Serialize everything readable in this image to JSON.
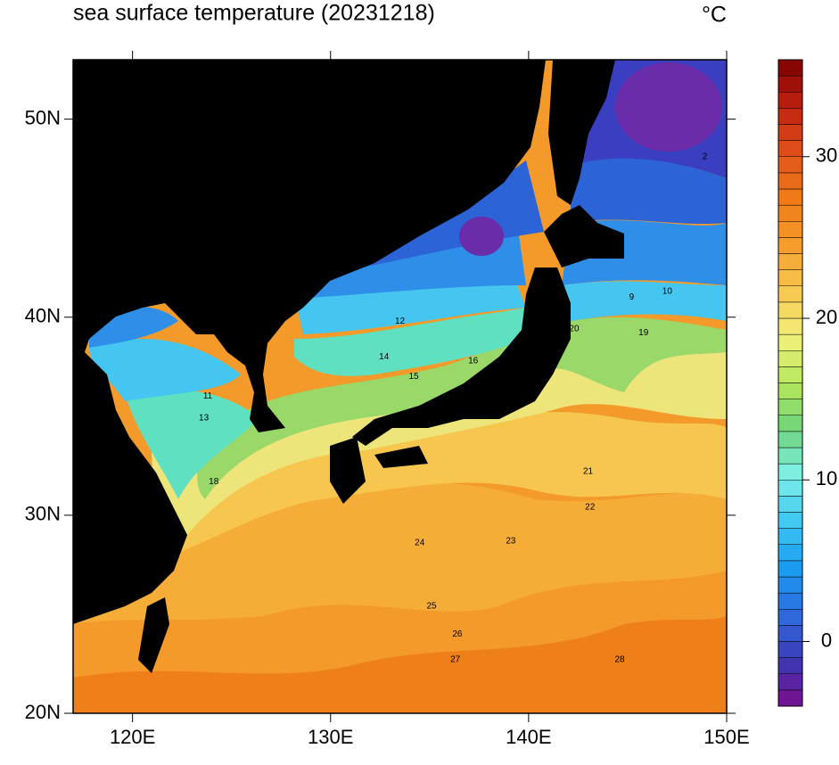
{
  "title": "sea surface temperature (20231218)",
  "unit": "°C",
  "map": {
    "xlim": [
      117,
      150
    ],
    "ylim": [
      20,
      53
    ],
    "xticks": [
      {
        "value": 120,
        "label": "120E"
      },
      {
        "value": 130,
        "label": "130E"
      },
      {
        "value": 140,
        "label": "140E"
      },
      {
        "value": 150,
        "label": "150E"
      }
    ],
    "yticks": [
      {
        "value": 20,
        "label": "20N"
      },
      {
        "value": 30,
        "label": "30N"
      },
      {
        "value": 40,
        "label": "40N"
      },
      {
        "value": 50,
        "label": "50N"
      }
    ],
    "contour_labels": [
      {
        "lon": 134.5,
        "lat": 28.6,
        "value": 24
      },
      {
        "lon": 135.1,
        "lat": 25.4,
        "value": 25
      },
      {
        "lon": 136.4,
        "lat": 24.0,
        "value": 26
      },
      {
        "lon": 136.3,
        "lat": 22.7,
        "value": 27
      },
      {
        "lon": 144.6,
        "lat": 22.7,
        "value": 28
      },
      {
        "lon": 143.1,
        "lat": 30.4,
        "value": 22
      },
      {
        "lon": 143.0,
        "lat": 32.2,
        "value": 21
      },
      {
        "lon": 139.1,
        "lat": 28.7,
        "value": 23
      },
      {
        "lon": 124.1,
        "lat": 31.7,
        "value": 18
      },
      {
        "lon": 123.6,
        "lat": 34.9,
        "value": 13
      },
      {
        "lon": 123.8,
        "lat": 36.0,
        "value": 11
      },
      {
        "lon": 134.2,
        "lat": 37.0,
        "value": 15
      },
      {
        "lon": 132.7,
        "lat": 38.0,
        "value": 14
      },
      {
        "lon": 137.2,
        "lat": 37.8,
        "value": 16
      },
      {
        "lon": 133.5,
        "lat": 39.8,
        "value": 12
      },
      {
        "lon": 147.0,
        "lat": 41.3,
        "value": 10
      },
      {
        "lon": 145.2,
        "lat": 41.0,
        "value": 9
      },
      {
        "lon": 145.8,
        "lat": 39.2,
        "value": 19
      },
      {
        "lon": 142.3,
        "lat": 39.4,
        "value": 20
      },
      {
        "lon": 148.9,
        "lat": 48.1,
        "value": 2
      }
    ]
  },
  "colorbar": {
    "lim": [
      -4,
      36
    ],
    "ticks": [
      0,
      10,
      20,
      30
    ],
    "colormap": [
      "#7a0c8c",
      "#3a3ab4",
      "#2f6cdf",
      "#1a9cf0",
      "#3fc8f2",
      "#7ff0e8",
      "#6ed47a",
      "#b6e65a",
      "#f1f07a",
      "#f8c850",
      "#f59c2c",
      "#ef7a16",
      "#e0501a",
      "#c02010",
      "#7a0000"
    ]
  }
}
